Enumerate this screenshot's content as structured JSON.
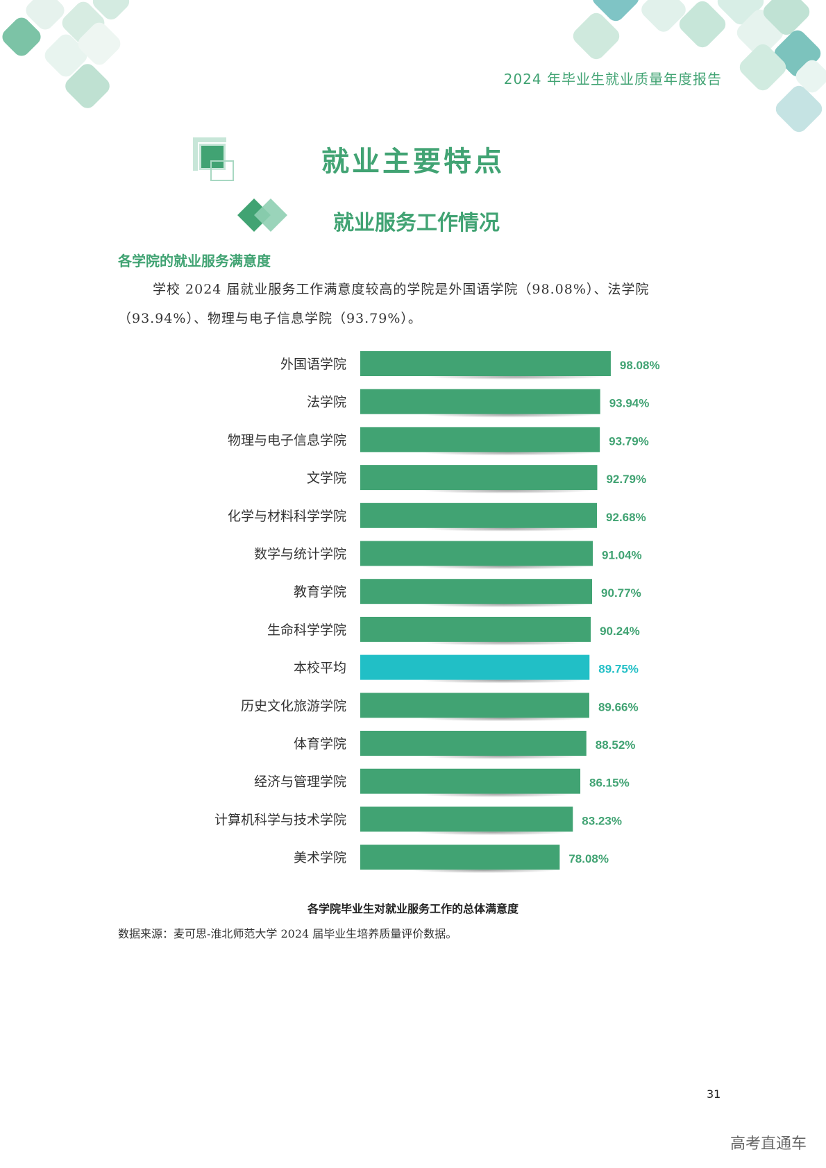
{
  "colors": {
    "accent": "#41a373",
    "bar": "#41a373",
    "highlight": "#21bfc6",
    "deco_light": "#d6ece2",
    "deco_mid": "#a8d8c2",
    "deco_dark": "#6fb99a"
  },
  "header": {
    "report_title": "2024 年毕业生就业质量年度报告"
  },
  "section": {
    "title": "就业主要特点",
    "subtitle": "就业服务工作情况",
    "heading": "各学院的就业服务满意度",
    "paragraph": "学校 2024 届就业服务工作满意度较高的学院是外国语学院（98.08%）、法学院（93.94%）、物理与电子信息学院（93.79%）。"
  },
  "chart_data": {
    "type": "bar",
    "orientation": "horizontal",
    "categories": [
      "外国语学院",
      "法学院",
      "物理与电子信息学院",
      "文学院",
      "化学与材料科学学院",
      "数学与统计学院",
      "教育学院",
      "生命科学学院",
      "本校平均",
      "历史文化旅游学院",
      "体育学院",
      "经济与管理学院",
      "计算机科学与技术学院",
      "美术学院"
    ],
    "values": [
      98.08,
      93.94,
      93.79,
      92.79,
      92.68,
      91.04,
      90.77,
      90.24,
      89.75,
      89.66,
      88.52,
      86.15,
      83.23,
      78.08
    ],
    "labels": [
      "98.08%",
      "93.94%",
      "93.79%",
      "92.79%",
      "92.68%",
      "91.04%",
      "90.77%",
      "90.24%",
      "89.75%",
      "89.66%",
      "88.52%",
      "86.15%",
      "83.23%",
      "78.08%"
    ],
    "highlight_category": "本校平均",
    "xlim": [
      0,
      100
    ],
    "unit": "%",
    "caption": "各学院毕业生对就业服务工作的总体满意度"
  },
  "source_note": "数据来源：麦可思-淮北师范大学 2024 届毕业生培养质量评价数据。",
  "page_number": "31",
  "watermark": "高考直通车"
}
